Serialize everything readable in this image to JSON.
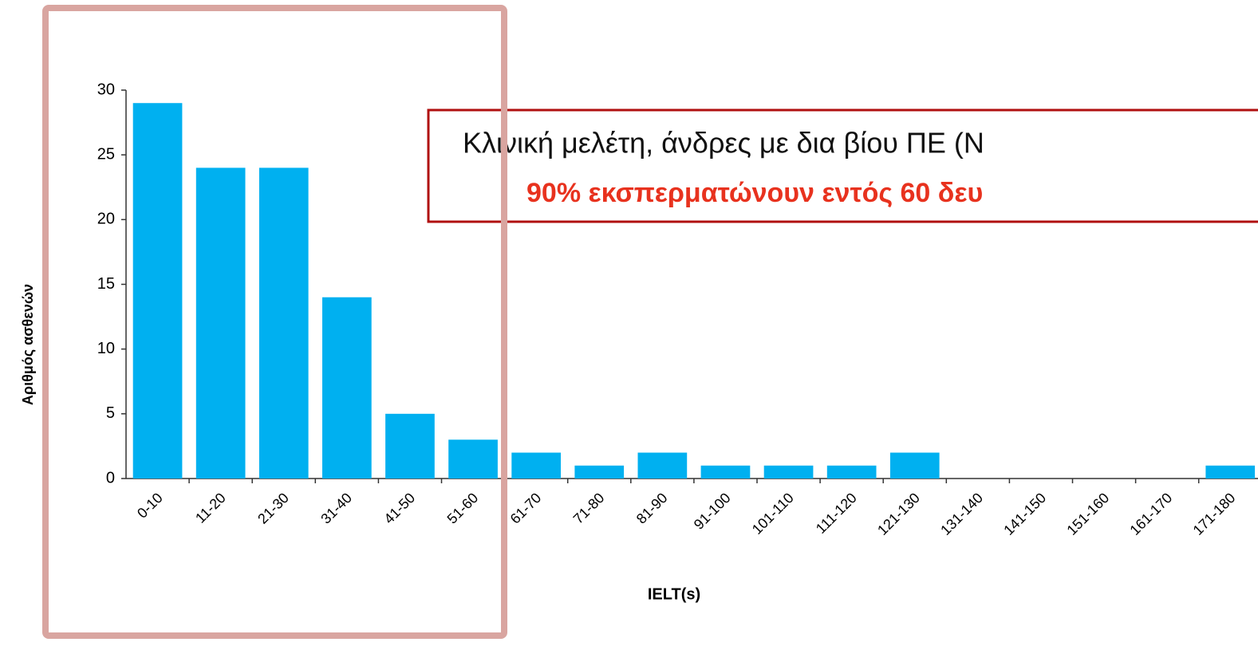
{
  "chart_data": {
    "type": "bar",
    "title": "Κλινική μελέτη, άνδρες με δια βίου ΠΕ (Ν",
    "subtitle": "90% εκσπερματώνουν εντός 60 δευ",
    "x_label": "IELT(s)",
    "y_label": "Αριθμός ασθενών",
    "categories": [
      "0-10",
      "11-20",
      "21-30",
      "31-40",
      "41-50",
      "51-60",
      "61-70",
      "71-80",
      "81-90",
      "91-100",
      "101-110",
      "111-120",
      "121-130",
      "131-140",
      "141-150",
      "151-160",
      "161-170",
      "171-180"
    ],
    "values": [
      29,
      24,
      24,
      14,
      5,
      3,
      2,
      1,
      2,
      1,
      1,
      1,
      2,
      0,
      0,
      0,
      0,
      1
    ],
    "color": "#00b0f0",
    "ylim": [
      0,
      30
    ],
    "yticks": [
      0,
      5,
      10,
      15,
      20,
      25,
      30
    ],
    "grid": false
  }
}
